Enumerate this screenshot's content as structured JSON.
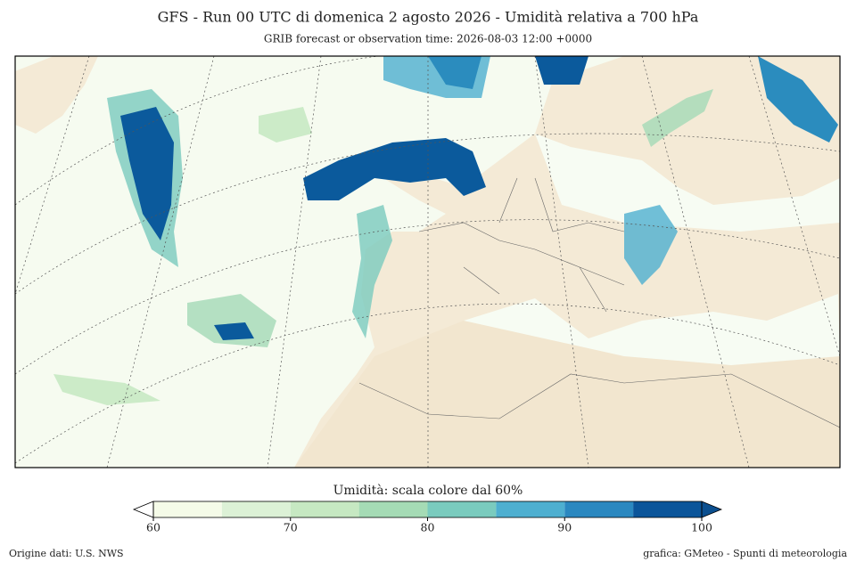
{
  "header": {
    "title": "GFS -  Run 00 UTC di domenica 2 agosto 2026 -  Umidità relativa a 700 hPa",
    "subtitle": "GRIB forecast or observation time: 2026-08-03 12:00 +0000"
  },
  "colorbar": {
    "label": "Umidità: scala colore dal 60%",
    "xlim": [
      60,
      100
    ],
    "ticks": [
      60,
      70,
      80,
      90,
      100
    ],
    "bounds": [
      60,
      65,
      70,
      75,
      80,
      85,
      90,
      95,
      100
    ],
    "colors": [
      "#f5fbe8",
      "#dcf1d6",
      "#c6e8c2",
      "#a5dbb5",
      "#7acbbe",
      "#4eafd0",
      "#2b88c0",
      "#0b559a"
    ],
    "under_color": "#ffffff",
    "over_color": "#0b4f8f"
  },
  "footer": {
    "source": "Origine dati: U.S. NWS",
    "credit": "grafica: GMeteo - Spunti di meteorologia"
  }
}
